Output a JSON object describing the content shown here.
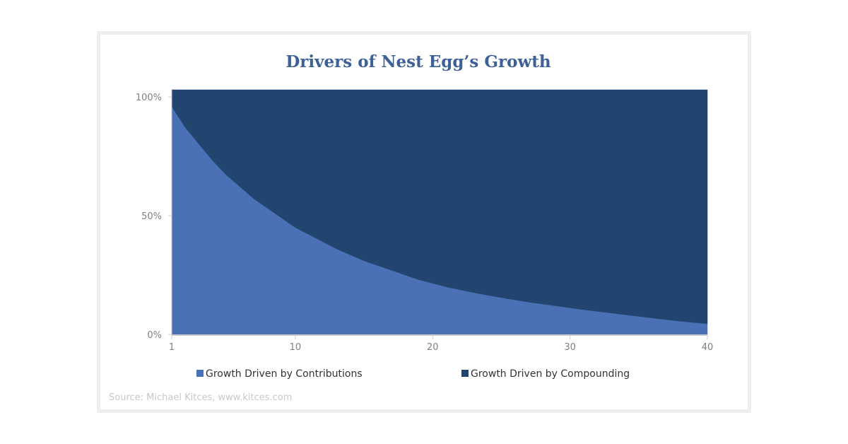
{
  "chart_data": {
    "type": "area",
    "title": "Drivers of Nest Egg’s Growth",
    "x": [
      1,
      2,
      3,
      4,
      5,
      6,
      7,
      8,
      9,
      10,
      11,
      12,
      13,
      14,
      15,
      16,
      17,
      18,
      19,
      20,
      21,
      22,
      23,
      24,
      25,
      26,
      27,
      28,
      29,
      30,
      31,
      32,
      33,
      34,
      35,
      36,
      37,
      38,
      39,
      40
    ],
    "x_ticks": [
      1,
      10,
      20,
      30,
      40
    ],
    "x_tick_labels": [
      "1",
      "10",
      "20",
      "30",
      "40"
    ],
    "y_ticks": [
      0,
      50,
      100
    ],
    "y_tick_labels": [
      "0%",
      "50%",
      "100%"
    ],
    "ylim": [
      0,
      103
    ],
    "stacked": true,
    "series": [
      {
        "name": "Growth Driven by Contributions",
        "color": "#4a70b5",
        "values": [
          96,
          87,
          80,
          73,
          67,
          62,
          57,
          53,
          49,
          45,
          42,
          39,
          36,
          33.5,
          31,
          29,
          27,
          25,
          23,
          21.5,
          20,
          18.8,
          17.6,
          16.5,
          15.5,
          14.5,
          13.6,
          12.8,
          12,
          11.2,
          10.4,
          9.7,
          9,
          8.3,
          7.6,
          6.9,
          6.2,
          5.6,
          5,
          4.5
        ]
      },
      {
        "name": "Growth Driven by Compounding",
        "color": "#21456f",
        "values": [
          7,
          16,
          23,
          30,
          36,
          41,
          46,
          50,
          54,
          58,
          61,
          64,
          67,
          69.5,
          72,
          74,
          76,
          78,
          80,
          81.5,
          83,
          84.2,
          85.4,
          86.5,
          87.5,
          88.5,
          89.4,
          90.2,
          91,
          91.8,
          92.6,
          93.3,
          94,
          94.7,
          95.4,
          96.1,
          96.8,
          97.4,
          98,
          98.5
        ]
      }
    ],
    "legend_position": "bottom",
    "grid": false
  },
  "source": "Source: Michael Kitces, www.kitces.com"
}
